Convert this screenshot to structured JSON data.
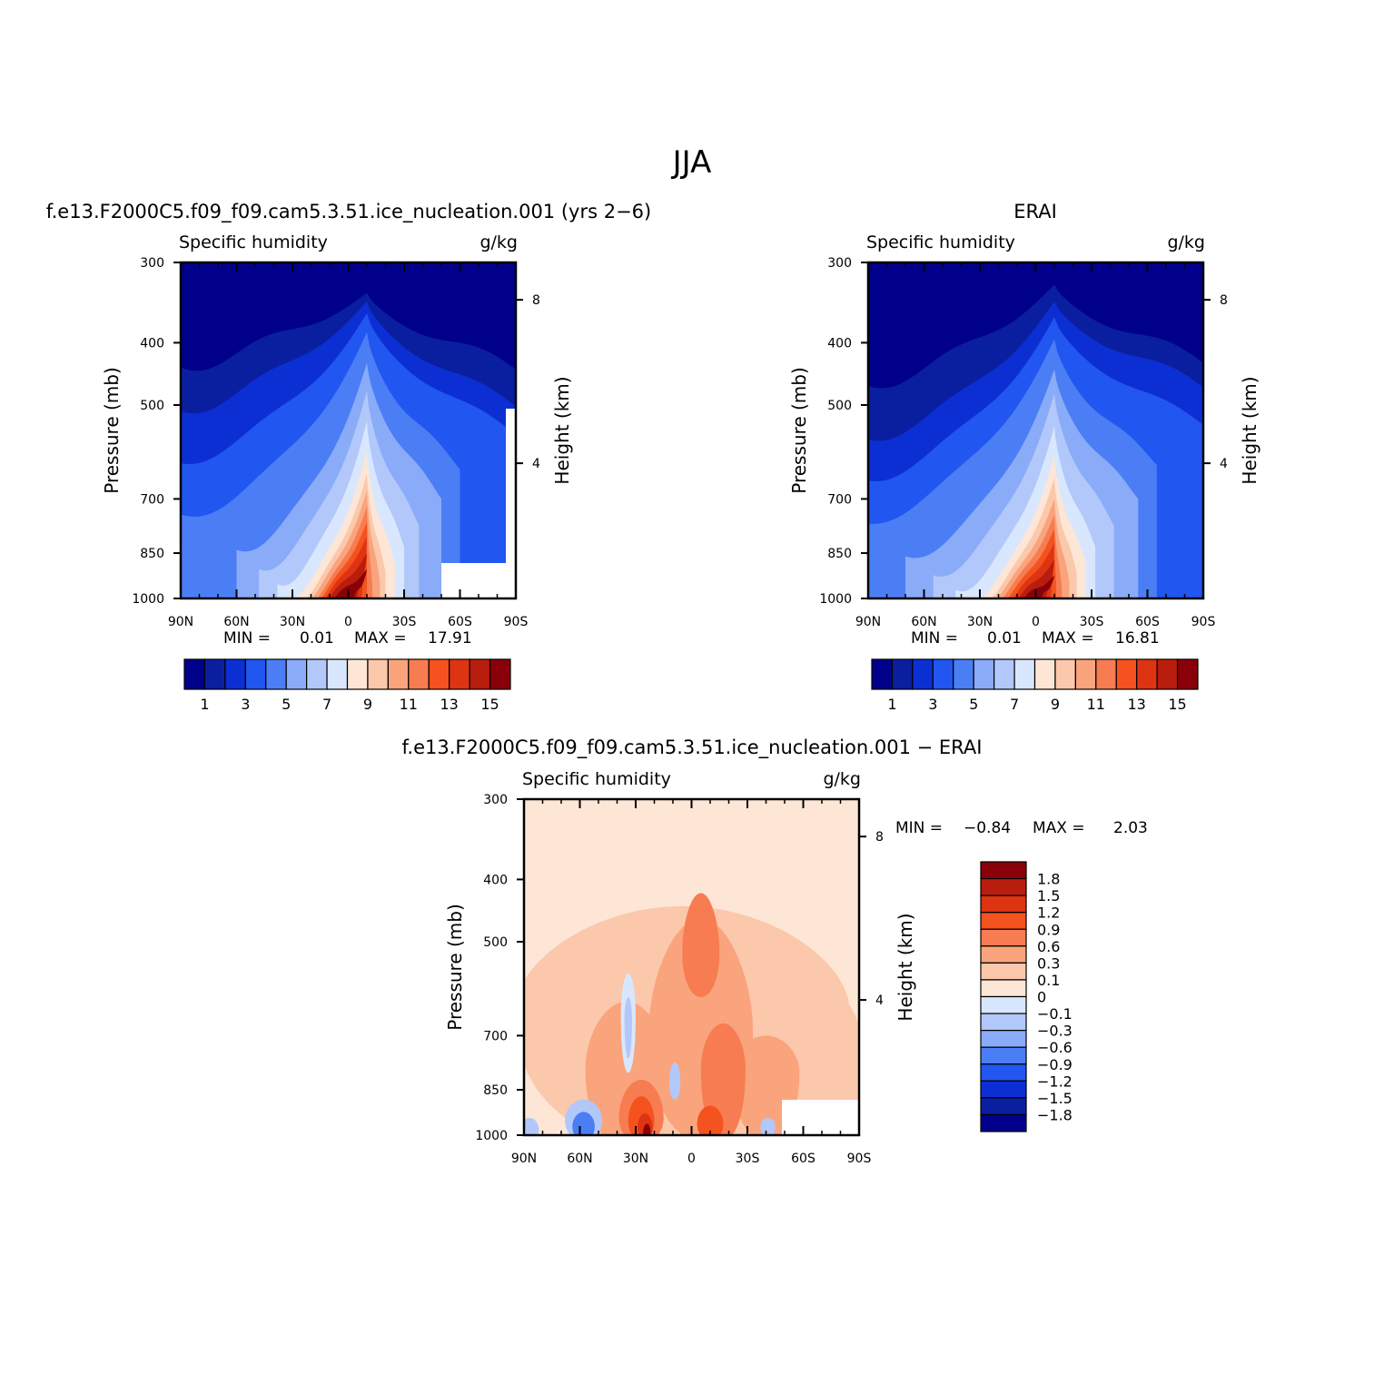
{
  "figure": {
    "title": "JJA"
  },
  "colors": {
    "abs_scale": [
      "#01008a",
      "#0a1fa0",
      "#0c2fd4",
      "#2156f0",
      "#4b7ef5",
      "#8aabf8",
      "#b2c8fa",
      "#d8e7fd",
      "#fde6d6",
      "#fbc8ab",
      "#f9a47c",
      "#f77c51",
      "#f4521e",
      "#de3412",
      "#b81d0e",
      "#8a0009"
    ],
    "diff_scale": [
      "#01008a",
      "#0a1fa0",
      "#0c2fd4",
      "#2156f0",
      "#4b7ef5",
      "#8aabf8",
      "#b2c8fa",
      "#d8e7fd",
      "#fde6d6",
      "#fbc8ab",
      "#f9a47c",
      "#f77c51",
      "#f4521e",
      "#de3412",
      "#b81d0e",
      "#8a0009"
    ]
  },
  "chart_data": [
    {
      "type": "heatmap",
      "panel": "model",
      "title": "f.e13.F2000C5.f09_f09.cam5.3.51.ice_nucleation.001 (yrs 2−6)",
      "left_label": "Specific humidity",
      "right_label": "g/kg",
      "xlabel": "",
      "ylabel": "Pressure (mb)",
      "ylabel_right": "Height (km)",
      "x_ticks": [
        "90N",
        "60N",
        "30N",
        "0",
        "30S",
        "60S",
        "90S"
      ],
      "x_values": [
        90,
        60,
        30,
        0,
        -30,
        -60,
        -90
      ],
      "y_ticks": [
        "300",
        "400",
        "500",
        "700",
        "850",
        "1000"
      ],
      "y_values": [
        300,
        400,
        500,
        700,
        850,
        1000
      ],
      "y_right_ticks": [
        "8",
        "4"
      ],
      "y_right_values_pressure": [
        343,
        616
      ],
      "stats": {
        "min_label": "MIN =",
        "min": "0.01",
        "max_label": "MAX =",
        "max": "17.91"
      },
      "contour_levels": [
        1,
        2,
        3,
        4,
        5,
        6,
        7,
        8,
        9,
        10,
        11,
        12,
        13,
        14,
        15
      ],
      "colorbar_labels": [
        "1",
        "3",
        "5",
        "7",
        "9",
        "11",
        "13",
        "15"
      ],
      "peak_lat": -10,
      "peak_value": 17.91
    },
    {
      "type": "heatmap",
      "panel": "obs",
      "title": "ERAI",
      "left_label": "Specific humidity",
      "right_label": "g/kg",
      "xlabel": "",
      "ylabel": "Pressure (mb)",
      "ylabel_right": "Height (km)",
      "x_ticks": [
        "90N",
        "60N",
        "30N",
        "0",
        "30S",
        "60S",
        "90S"
      ],
      "x_values": [
        90,
        60,
        30,
        0,
        -30,
        -60,
        -90
      ],
      "y_ticks": [
        "300",
        "400",
        "500",
        "700",
        "850",
        "1000"
      ],
      "y_values": [
        300,
        400,
        500,
        700,
        850,
        1000
      ],
      "y_right_ticks": [
        "8",
        "4"
      ],
      "y_right_values_pressure": [
        343,
        616
      ],
      "stats": {
        "min_label": "MIN =",
        "min": "0.01",
        "max_label": "MAX =",
        "max": "16.81"
      },
      "contour_levels": [
        1,
        2,
        3,
        4,
        5,
        6,
        7,
        8,
        9,
        10,
        11,
        12,
        13,
        14,
        15
      ],
      "colorbar_labels": [
        "1",
        "3",
        "5",
        "7",
        "9",
        "11",
        "13",
        "15"
      ],
      "peak_lat": -10,
      "peak_value": 16.81
    },
    {
      "type": "heatmap",
      "panel": "difference",
      "title": "f.e13.F2000C5.f09_f09.cam5.3.51.ice_nucleation.001 − ERAI",
      "left_label": "Specific humidity",
      "right_label": "g/kg",
      "xlabel": "",
      "ylabel": "Pressure (mb)",
      "ylabel_right": "Height (km)",
      "x_ticks": [
        "90N",
        "60N",
        "30N",
        "0",
        "30S",
        "60S",
        "90S"
      ],
      "x_values": [
        90,
        60,
        30,
        0,
        -30,
        -60,
        -90
      ],
      "y_ticks": [
        "300",
        "400",
        "500",
        "700",
        "850",
        "1000"
      ],
      "y_values": [
        300,
        400,
        500,
        700,
        850,
        1000
      ],
      "y_right_ticks": [
        "8",
        "4"
      ],
      "y_right_values_pressure": [
        343,
        616
      ],
      "stats": {
        "min_label": "MIN =",
        "min": "−0.84",
        "max_label": "MAX =",
        "max": "2.03"
      },
      "contour_levels": [
        -1.8,
        -1.5,
        -1.2,
        -0.9,
        -0.6,
        -0.3,
        -0.1,
        0,
        0.1,
        0.3,
        0.6,
        0.9,
        1.2,
        1.5,
        1.8
      ],
      "colorbar_labels": [
        "1.8",
        "1.5",
        "1.2",
        "0.9",
        "0.6",
        "0.3",
        "0.1",
        "0",
        "−0.1",
        "−0.3",
        "−0.6",
        "−0.9",
        "−1.2",
        "−1.5",
        "−1.8"
      ]
    }
  ]
}
